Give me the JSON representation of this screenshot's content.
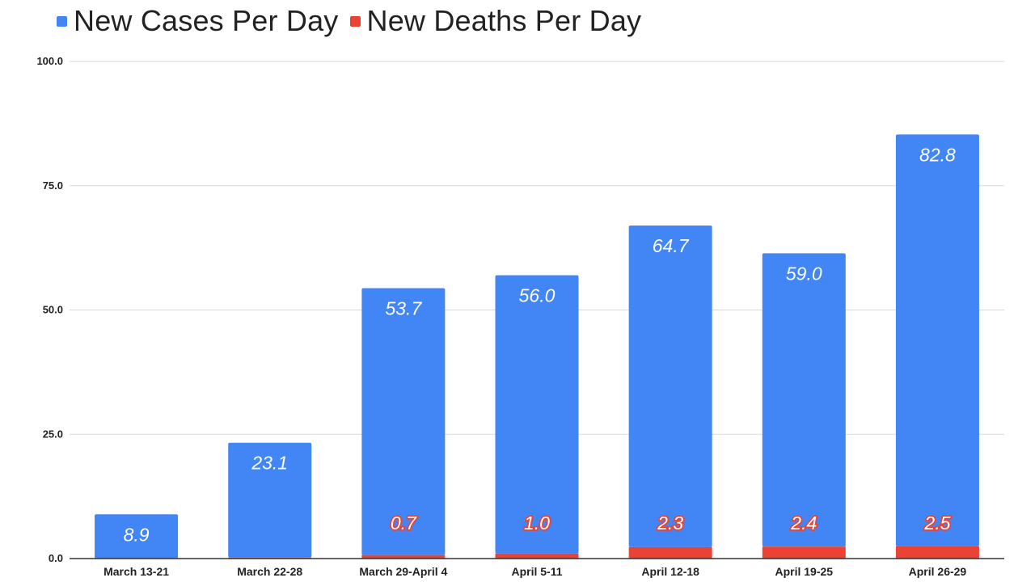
{
  "legend": {
    "cases_label": "New Cases Per Day",
    "deaths_label": "New Deaths Per Day"
  },
  "colors": {
    "cases": "#4285f4",
    "deaths": "#ea4335",
    "grid": "#d9d9d9",
    "axis": "#333333"
  },
  "chart_data": {
    "type": "bar",
    "stacked": true,
    "categories": [
      "March 13-21",
      "March 22-28",
      "March 29-April 4",
      "April 5-11",
      "April 12-18",
      "April 19-25",
      "April 26-29"
    ],
    "series": [
      {
        "name": "New Deaths Per Day",
        "values": [
          0,
          0.2,
          0.7,
          1.0,
          2.3,
          2.4,
          2.5
        ],
        "labels": [
          "",
          "",
          "0.7",
          "1.0",
          "2.3",
          "2.4",
          "2.5"
        ]
      },
      {
        "name": "New Cases Per Day",
        "values": [
          8.9,
          23.1,
          53.7,
          56.0,
          64.7,
          59.0,
          82.8
        ],
        "labels": [
          "8.9",
          "23.1",
          "53.7",
          "56.0",
          "64.7",
          "59.0",
          "82.8"
        ]
      }
    ],
    "yticks": [
      "0.0",
      "25.0",
      "50.0",
      "75.0",
      "100.0"
    ],
    "ylim": [
      0,
      100
    ],
    "grid": true,
    "legend_position": "top-left"
  }
}
